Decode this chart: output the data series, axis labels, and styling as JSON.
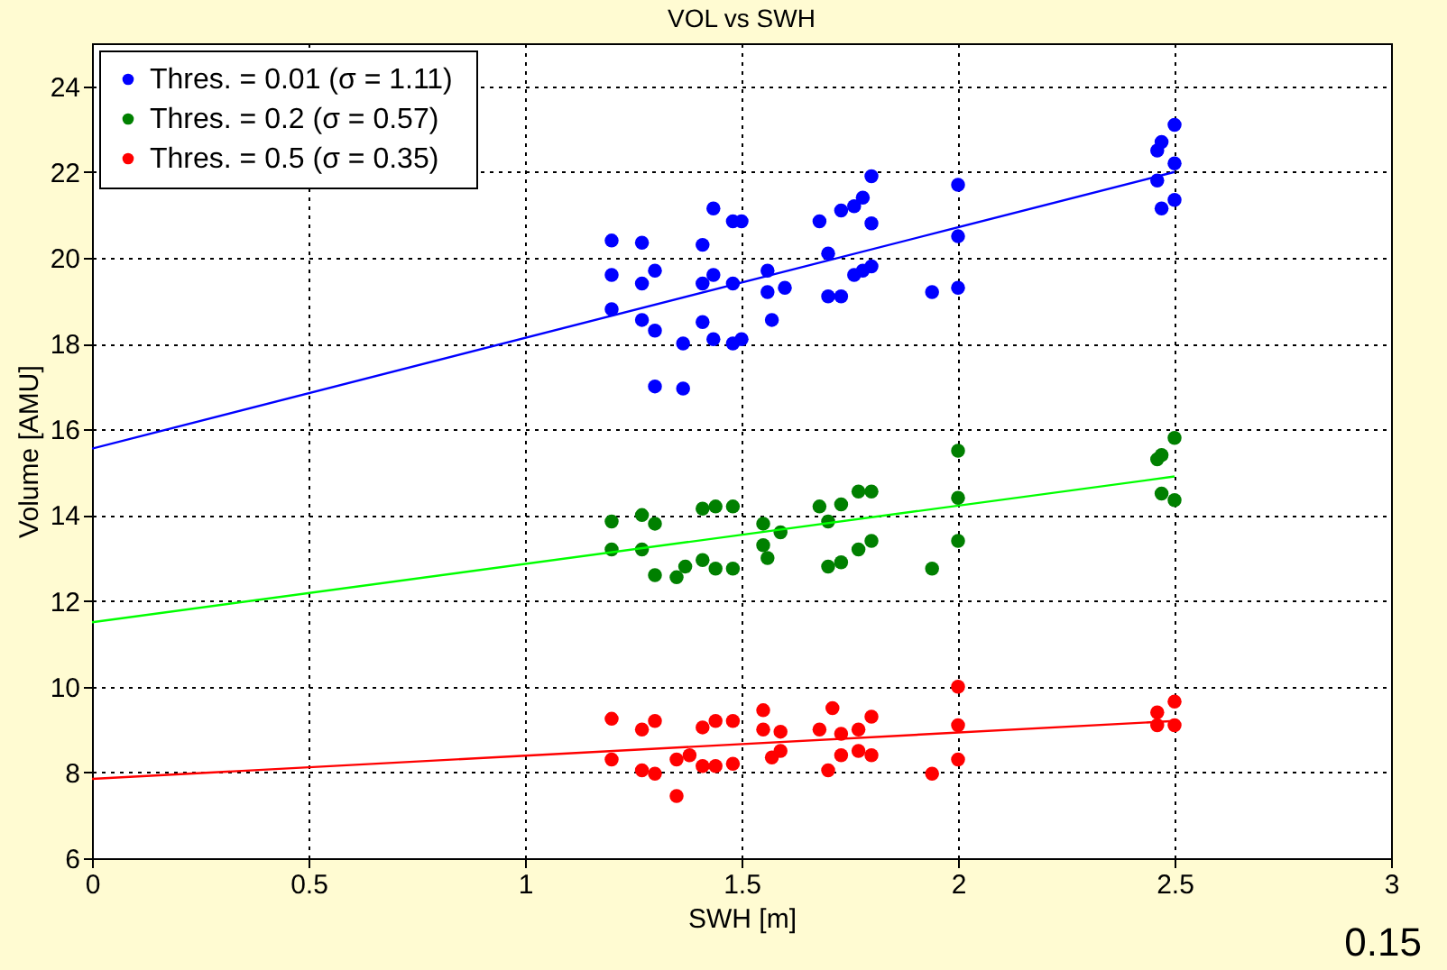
{
  "chart_data": {
    "type": "scatter",
    "title": "VOL vs SWH",
    "xlabel": "SWH [m]",
    "ylabel": "Volume [AMU]",
    "xlim": [
      0,
      3
    ],
    "xticks": [
      0,
      0.5,
      1,
      1.5,
      2,
      2.5,
      3
    ],
    "ylim": [
      6,
      25
    ],
    "yticks": [
      6,
      8,
      10,
      12,
      14,
      16,
      18,
      20,
      22,
      24
    ],
    "grid": true,
    "legend": "top left",
    "marker": "circle",
    "line_style": "solid",
    "annotations": [
      "0.15"
    ],
    "series": [
      {
        "name": "Thres. = 0.01 (σ =  1.11)",
        "color": "#0000ff",
        "x": [
          1.2,
          1.2,
          1.2,
          1.27,
          1.27,
          1.27,
          1.3,
          1.3,
          1.3,
          1.365,
          1.365,
          1.41,
          1.41,
          1.41,
          1.435,
          1.435,
          1.435,
          1.48,
          1.48,
          1.48,
          1.5,
          1.5,
          1.56,
          1.56,
          1.57,
          1.6,
          1.68,
          1.7,
          1.7,
          1.73,
          1.73,
          1.76,
          1.76,
          1.78,
          1.78,
          1.8,
          1.8,
          1.8,
          1.94,
          2.0,
          2.0,
          2.0,
          2.46,
          2.46,
          2.47,
          2.47,
          2.5,
          2.5,
          2.5
        ],
        "values": [
          20.4,
          19.6,
          18.8,
          20.35,
          19.4,
          18.55,
          19.7,
          18.3,
          17.0,
          18.0,
          16.95,
          20.3,
          19.4,
          18.5,
          21.15,
          19.6,
          18.1,
          20.85,
          19.4,
          18.0,
          20.85,
          18.1,
          19.7,
          19.2,
          18.55,
          19.3,
          20.85,
          20.1,
          19.1,
          21.1,
          19.1,
          21.2,
          19.6,
          21.4,
          19.7,
          21.9,
          20.8,
          19.8,
          19.2,
          21.7,
          20.5,
          19.3,
          22.5,
          21.8,
          22.7,
          21.15,
          23.1,
          22.2,
          21.35
        ]
      },
      {
        "name": "Thres. = 0.2 (σ =  0.57)",
        "color": "#008000",
        "x": [
          1.2,
          1.2,
          1.27,
          1.27,
          1.3,
          1.3,
          1.35,
          1.37,
          1.41,
          1.41,
          1.44,
          1.44,
          1.48,
          1.48,
          1.55,
          1.55,
          1.56,
          1.59,
          1.68,
          1.7,
          1.7,
          1.73,
          1.73,
          1.77,
          1.77,
          1.8,
          1.8,
          1.94,
          2.0,
          2.0,
          2.0,
          2.46,
          2.47,
          2.47,
          2.5,
          2.5
        ],
        "values": [
          13.85,
          13.2,
          14.0,
          13.2,
          13.8,
          12.6,
          12.55,
          12.8,
          14.15,
          12.95,
          14.2,
          12.75,
          14.2,
          12.75,
          13.8,
          13.3,
          13.0,
          13.6,
          14.2,
          13.85,
          12.8,
          14.25,
          12.9,
          14.55,
          13.2,
          14.55,
          13.4,
          12.75,
          15.5,
          14.4,
          13.4,
          15.3,
          15.4,
          14.5,
          15.8,
          14.35
        ]
      },
      {
        "name": "Thres. = 0.5 (σ =  0.35)",
        "color": "#ff0000",
        "x": [
          1.2,
          1.2,
          1.27,
          1.27,
          1.3,
          1.3,
          1.35,
          1.35,
          1.38,
          1.41,
          1.41,
          1.44,
          1.44,
          1.48,
          1.48,
          1.55,
          1.55,
          1.57,
          1.59,
          1.59,
          1.68,
          1.7,
          1.71,
          1.73,
          1.73,
          1.77,
          1.77,
          1.8,
          1.8,
          1.94,
          2.0,
          2.0,
          2.0,
          2.46,
          2.46,
          2.5,
          2.5
        ],
        "values": [
          9.25,
          8.3,
          9.0,
          8.05,
          9.2,
          7.97,
          8.3,
          7.45,
          8.4,
          9.05,
          8.15,
          9.2,
          8.15,
          9.2,
          8.2,
          9.45,
          9.0,
          8.35,
          8.95,
          8.5,
          9.0,
          8.05,
          9.5,
          8.9,
          8.4,
          9.0,
          8.5,
          9.3,
          8.4,
          7.97,
          10.0,
          9.1,
          8.3,
          9.4,
          9.1,
          9.65,
          9.1
        ]
      },
      {
        "type": "line",
        "marker": "none",
        "color": "#0000ff",
        "x": [
          0,
          2.5
        ],
        "values": [
          15.55,
          22.0
        ]
      },
      {
        "type": "line",
        "marker": "none",
        "color": "#00ff00",
        "x": [
          0,
          2.5
        ],
        "values": [
          11.5,
          14.9
        ]
      },
      {
        "type": "line",
        "marker": "none",
        "color": "#ff0000",
        "x": [
          0,
          2.5
        ],
        "values": [
          7.85,
          9.2
        ]
      }
    ]
  }
}
